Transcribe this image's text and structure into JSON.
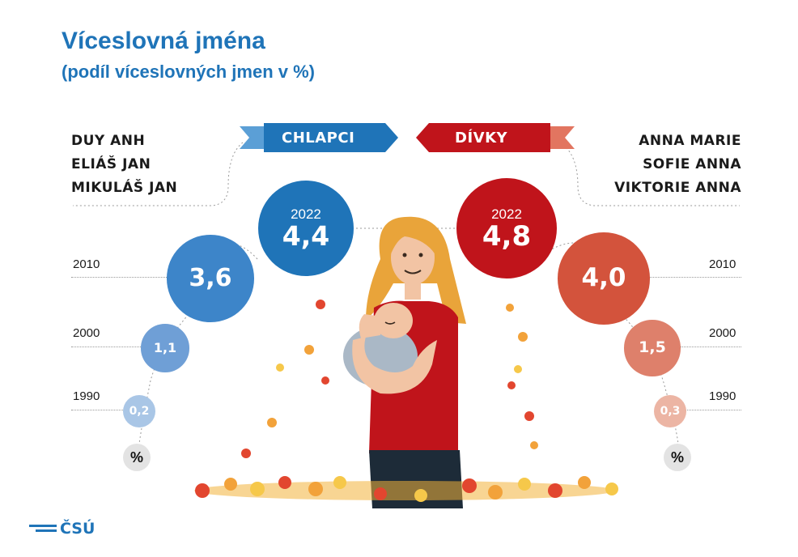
{
  "header": {
    "title": "Víceslovná jména",
    "subtitle": "(podíl víceslovných jmen v %)"
  },
  "boys": {
    "banner": "CHLAPCI",
    "names": [
      "DUY ANH",
      "ELIÁŠ JAN",
      "MIKULÁŠ JAN"
    ],
    "color": "#1f74b8"
  },
  "girls": {
    "banner": "DÍVKY",
    "names": [
      "ANNA MARIE",
      "SOFIE ANNA",
      "VIKTORIE ANNA"
    ],
    "color": "#c0141b"
  },
  "unit_label": "%",
  "logo_text": "ČSÚ",
  "chart_data": {
    "type": "bubble",
    "title": "Víceslovná jména",
    "subtitle": "(podíl víceslovných jmen v %)",
    "unit": "%",
    "categories": [
      "1990",
      "2000",
      "2010",
      "2022"
    ],
    "series": [
      {
        "name": "CHLAPCI",
        "values": [
          0.2,
          1.1,
          3.6,
          4.4
        ],
        "labels": [
          "0,2",
          "1,1",
          "3,6",
          "4,4"
        ]
      },
      {
        "name": "DÍVKY",
        "values": [
          0.3,
          1.5,
          4.0,
          4.8
        ],
        "labels": [
          "0,3",
          "1,5",
          "4,0",
          "4,8"
        ]
      }
    ]
  }
}
